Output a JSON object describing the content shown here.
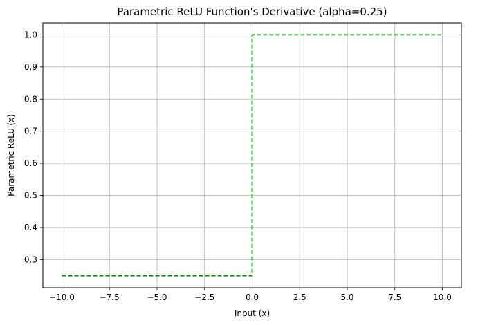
{
  "chart_data": {
    "type": "line",
    "title": "Parametric ReLU Function's Derivative (alpha=0.25)",
    "xlabel": "Input (x)",
    "ylabel": "Parametric ReLU'(x)",
    "xlim": [
      -11,
      11
    ],
    "ylim": [
      0.2125,
      1.0375
    ],
    "x_ticks": [
      -10.0,
      -7.5,
      -5.0,
      -2.5,
      0.0,
      2.5,
      5.0,
      7.5,
      10.0
    ],
    "x_tick_labels": [
      "−10.0",
      "−7.5",
      "−5.0",
      "−2.5",
      "0.0",
      "2.5",
      "5.0",
      "7.5",
      "10.0"
    ],
    "y_ticks": [
      0.3,
      0.4,
      0.5,
      0.6,
      0.7,
      0.8,
      0.9,
      1.0
    ],
    "y_tick_labels": [
      "0.3",
      "0.4",
      "0.5",
      "0.6",
      "0.7",
      "0.8",
      "0.9",
      "1.0"
    ],
    "grid": true,
    "series": [
      {
        "color": "#008000",
        "line_style": "dashed",
        "x": [
          -10,
          0,
          0,
          10
        ],
        "y": [
          0.25,
          0.25,
          1.0,
          1.0
        ]
      }
    ]
  }
}
